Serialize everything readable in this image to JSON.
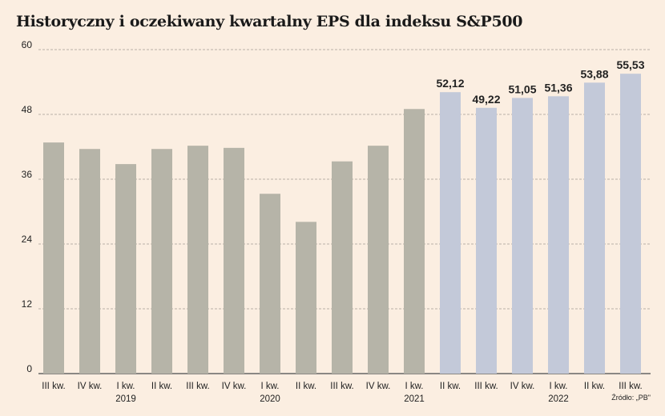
{
  "title": "Historyczny i oczekiwany kwartalny EPS dla indeksu S&P500",
  "source": "Źródło: „PB\"",
  "chart_data": {
    "type": "bar",
    "title": "Historyczny i oczekiwany kwartalny EPS dla indeksu S&P500",
    "categories": [
      "III kw.",
      "IV kw.",
      "I kw.",
      "II kw.",
      "III kw.",
      "IV kw.",
      "I kw.",
      "II kw.",
      "III kw.",
      "IV kw.",
      "I kw.",
      "II kw.",
      "III kw.",
      "IV kw.",
      "I kw.",
      "II kw.",
      "III kw."
    ],
    "year_labels": [
      "",
      "",
      "2019",
      "",
      "",
      "",
      "2020",
      "",
      "",
      "",
      "2021",
      "",
      "",
      "",
      "2022",
      "",
      ""
    ],
    "values": [
      42.8,
      41.6,
      38.8,
      41.6,
      42.2,
      41.8,
      33.3,
      28.1,
      39.3,
      42.2,
      49.0,
      52.12,
      49.22,
      51.05,
      51.36,
      53.88,
      55.53
    ],
    "data_labels": [
      "",
      "",
      "",
      "",
      "",
      "",
      "",
      "",
      "",
      "",
      "",
      "52,12",
      "49,22",
      "51,05",
      "51,36",
      "53,88",
      "55,53"
    ],
    "series_type": [
      "historical",
      "historical",
      "historical",
      "historical",
      "historical",
      "historical",
      "historical",
      "historical",
      "historical",
      "historical",
      "historical",
      "expected",
      "expected",
      "expected",
      "expected",
      "expected",
      "expected"
    ],
    "colors": {
      "historical": "#b6b4a8",
      "expected": "#c3c9d9"
    },
    "yticks": [
      0,
      12,
      24,
      36,
      48,
      60
    ],
    "ylim": [
      0,
      60
    ],
    "grid": true
  }
}
